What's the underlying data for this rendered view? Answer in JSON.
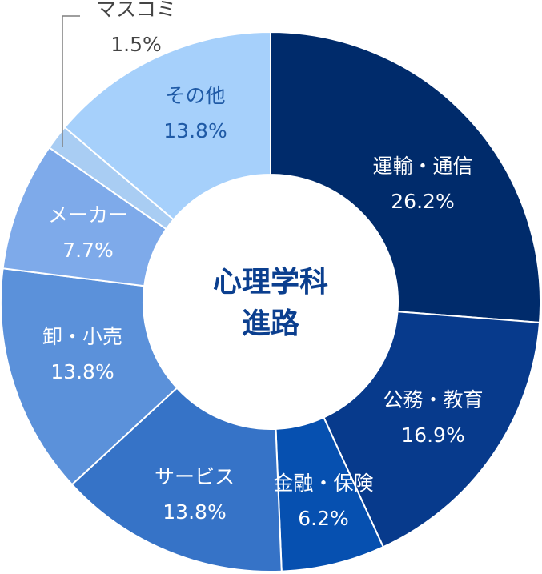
{
  "chart_data": {
    "type": "pie",
    "donut": true,
    "center_title_lines": [
      "心理学科",
      "進路"
    ],
    "slices": [
      {
        "label": "運輸・通信",
        "value": 26.2,
        "value_label": "26.2%",
        "color": "#002b6b",
        "text_color": "#ffffff"
      },
      {
        "label": "公務・教育",
        "value": 16.9,
        "value_label": "16.9%",
        "color": "#073a8c",
        "text_color": "#ffffff"
      },
      {
        "label": "金融・保険",
        "value": 6.2,
        "value_label": "6.2%",
        "color": "#0650b0",
        "text_color": "#ffffff"
      },
      {
        "label": "サービス",
        "value": 13.8,
        "value_label": "13.8%",
        "color": "#3673c7",
        "text_color": "#ffffff"
      },
      {
        "label": "卸・小売",
        "value": 13.8,
        "value_label": "13.8%",
        "color": "#5b91da",
        "text_color": "#ffffff"
      },
      {
        "label": "メーカー",
        "value": 7.7,
        "value_label": "7.7%",
        "color": "#7eaaea",
        "text_color": "#ffffff"
      },
      {
        "label": "マスコミ",
        "value": 1.5,
        "value_label": "1.5%",
        "color": "#a9cdf3",
        "text_color": "#444444"
      },
      {
        "label": "その他",
        "value": 13.8,
        "value_label": "13.8%",
        "color": "#a6d0fb",
        "text_color": "#1f5aa6"
      }
    ],
    "center_title_color": "#0b3f8f",
    "leader_line_color": "#7f7f7f"
  }
}
